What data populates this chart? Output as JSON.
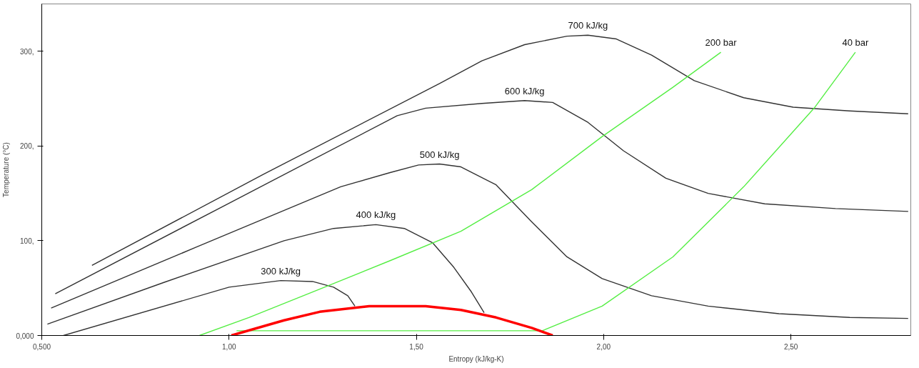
{
  "chart_data": {
    "type": "line",
    "xlabel": "Entropy (kJ/kg-K)",
    "ylabel": "Temperature (°C)",
    "xlim": [
      0.5,
      2.82
    ],
    "ylim": [
      0,
      350
    ],
    "xticks": [
      {
        "value": 0.5,
        "label": "0,500"
      },
      {
        "value": 1.0,
        "label": "1,00"
      },
      {
        "value": 1.5,
        "label": "1,50"
      },
      {
        "value": 2.0,
        "label": "2,00"
      },
      {
        "value": 2.5,
        "label": "2,50"
      }
    ],
    "yticks": [
      {
        "value": 0,
        "label": "0,000"
      },
      {
        "value": 100,
        "label": "100,"
      },
      {
        "value": 200,
        "label": "200,"
      },
      {
        "value": 300,
        "label": "300,"
      }
    ],
    "grid": false,
    "legend": false,
    "marker": "none",
    "line_style": "solid",
    "series": [
      {
        "name": "700 kJ/kg",
        "color": "#333333",
        "x": [
          0.634,
          1.091,
          1.562,
          1.675,
          1.789,
          1.902,
          1.958,
          2.034,
          2.128,
          2.242,
          2.374,
          2.506,
          2.657,
          2.813
        ],
        "values": [
          74,
          170,
          266,
          290,
          307,
          316,
          317,
          313,
          296,
          269,
          251,
          241,
          237,
          234
        ]
      },
      {
        "name": "600 kJ/kg",
        "color": "#333333",
        "x": [
          0.536,
          0.992,
          1.449,
          1.525,
          1.675,
          1.789,
          1.864,
          1.958,
          2.053,
          2.166,
          2.279,
          2.43,
          2.619,
          2.813
        ],
        "values": [
          44,
          138,
          232,
          240,
          245,
          248,
          246,
          225,
          195,
          166,
          150,
          139,
          134,
          131
        ]
      },
      {
        "name": "500 kJ/kg",
        "color": "#333333",
        "x": [
          0.525,
          0.911,
          1.298,
          1.43,
          1.506,
          1.562,
          1.619,
          1.713,
          1.808,
          1.902,
          1.996,
          2.128,
          2.279,
          2.468,
          2.657,
          2.813
        ],
        "values": [
          29,
          93,
          157,
          172,
          180,
          181,
          178,
          159,
          120,
          83,
          60,
          42,
          31,
          23,
          19,
          18
        ]
      },
      {
        "name": "400 kJ/kg",
        "color": "#333333",
        "x": [
          0.515,
          0.826,
          1.147,
          1.279,
          1.392,
          1.468,
          1.543,
          1.6,
          1.647,
          1.681
        ],
        "values": [
          12,
          56,
          100,
          113,
          117,
          113,
          98,
          72,
          46,
          24
        ]
      },
      {
        "name": "300 kJ/kg",
        "color": "#333333",
        "x": [
          0.558,
          1.0,
          1.138,
          1.223,
          1.279,
          1.317,
          1.336
        ],
        "values": [
          0,
          51,
          58,
          57,
          51,
          42,
          31
        ]
      },
      {
        "name": "200 bar",
        "color": "#55ee44",
        "x": [
          0.921,
          1.053,
          1.242,
          1.43,
          1.619,
          1.808,
          1.996,
          2.185,
          2.313
        ],
        "values": [
          0,
          19,
          49,
          79,
          110,
          154,
          210,
          262,
          299
        ]
      },
      {
        "name": "40 bar",
        "color": "#55ee44",
        "x": [
          1.02,
          1.4,
          1.836,
          1.996,
          2.185,
          2.374,
          2.562,
          2.672
        ],
        "values": [
          5,
          5,
          5,
          31,
          83,
          157,
          240,
          299
        ]
      },
      {
        "color": "#ff0000",
        "x": [
          1.006,
          1.147,
          1.242,
          1.374,
          1.525,
          1.619,
          1.713,
          1.808,
          1.864
        ],
        "values": [
          0,
          16,
          25,
          31,
          31,
          27,
          19,
          8,
          0
        ]
      }
    ]
  }
}
